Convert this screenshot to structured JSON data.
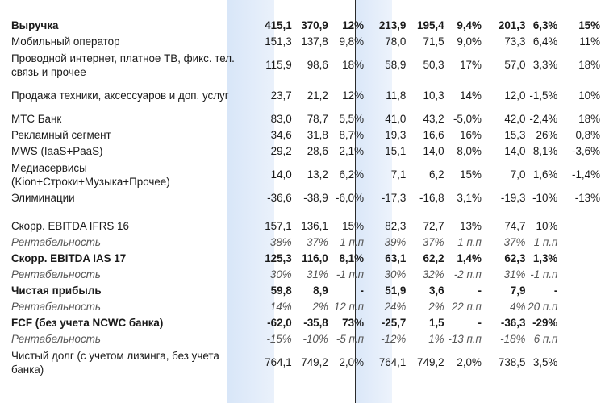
{
  "rows": [
    {
      "label": "Выручка",
      "v": [
        "415,1",
        "370,9",
        "12%",
        "213,9",
        "195,4",
        "9,4%",
        "201,3",
        "6,3%",
        "15%"
      ]
    },
    {
      "label": "Мобильный оператор",
      "v": [
        "151,3",
        "137,8",
        "9,8%",
        "78,0",
        "71,5",
        "9,0%",
        "73,3",
        "6,4%",
        "11%"
      ]
    },
    {
      "label": "Проводной интернет, платное ТВ, фикс. тел. связь и прочее",
      "v": [
        "115,9",
        "98,6",
        "18%",
        "58,9",
        "50,3",
        "17%",
        "57,0",
        "3,3%",
        "18%"
      ]
    },
    {
      "label": "Продажа техники, аксессуаров и доп. услуг",
      "v": [
        "23,7",
        "21,2",
        "12%",
        "11,8",
        "10,3",
        "14%",
        "12,0",
        "-1,5%",
        "10%"
      ]
    },
    {
      "label": "МТС Банк",
      "v": [
        "83,0",
        "78,7",
        "5,5%",
        "41,0",
        "43,2",
        "-5,0%",
        "42,0",
        "-2,4%",
        "18%"
      ]
    },
    {
      "label": "Рекламный сегмент",
      "v": [
        "34,6",
        "31,8",
        "8,7%",
        "19,3",
        "16,6",
        "16%",
        "15,3",
        "26%",
        "0,8%"
      ]
    },
    {
      "label": "MWS (IaaS+PaaS)",
      "v": [
        "29,2",
        "28,6",
        "2,1%",
        "15,1",
        "14,0",
        "8,0%",
        "14,0",
        "8,1%",
        "-3,6%"
      ]
    },
    {
      "label": "Медиасервисы (Kion+Строки+Музыка+Прочее)",
      "v": [
        "14,0",
        "13,2",
        "6,2%",
        "7,1",
        "6,2",
        "15%",
        "7,0",
        "1,6%",
        "-1,4%"
      ]
    },
    {
      "label": "Элиминации",
      "v": [
        "-36,6",
        "-38,9",
        "-6,0%",
        "-17,3",
        "-16,8",
        "3,1%",
        "-19,3",
        "-10%",
        "-13%"
      ]
    },
    {
      "label": "Скорр. EBITDA IFRS 16",
      "v": [
        "157,1",
        "136,1",
        "15%",
        "82,3",
        "72,7",
        "13%",
        "74,7",
        "10%",
        ""
      ]
    },
    {
      "label": "Рентабельность",
      "v": [
        "38%",
        "37%",
        "1 п.п",
        "39%",
        "37%",
        "1 п.п",
        "37%",
        "1 п.п",
        ""
      ]
    },
    {
      "label": "Скорр. EBITDA IAS 17",
      "v": [
        "125,3",
        "116,0",
        "8,1%",
        "63,1",
        "62,2",
        "1,4%",
        "62,3",
        "1,3%",
        ""
      ]
    },
    {
      "label": "Рентабельность",
      "v": [
        "30%",
        "31%",
        "-1 п.п",
        "30%",
        "32%",
        "-2 п.п",
        "31%",
        "-1 п.п",
        ""
      ]
    },
    {
      "label": "Чистая прибыль",
      "v": [
        "59,8",
        "8,9",
        "-",
        "51,9",
        "3,6",
        "-",
        "7,9",
        "-",
        ""
      ]
    },
    {
      "label": "Рентабельность",
      "v": [
        "14%",
        "2%",
        "12 п.п",
        "24%",
        "2%",
        "22 п.п",
        "4%",
        "20 п.п",
        ""
      ]
    },
    {
      "label": "FCF (без учета NCWC банка)",
      "v": [
        "-62,0",
        "-35,8",
        "73%",
        "-25,7",
        "1,5",
        "-",
        "-36,3",
        "-29%",
        ""
      ]
    },
    {
      "label": "Рентабельность",
      "v": [
        "-15%",
        "-10%",
        "-5 п.п",
        "-12%",
        "1%",
        "-13 п.п",
        "-18%",
        "6 п.п",
        ""
      ]
    },
    {
      "label": "Чистый долг (с учетом лизинга, без учета банка)",
      "v": [
        "764,1",
        "749,2",
        "2,0%",
        "764,1",
        "749,2",
        "2,0%",
        "738,5",
        "3,5%",
        ""
      ]
    }
  ]
}
